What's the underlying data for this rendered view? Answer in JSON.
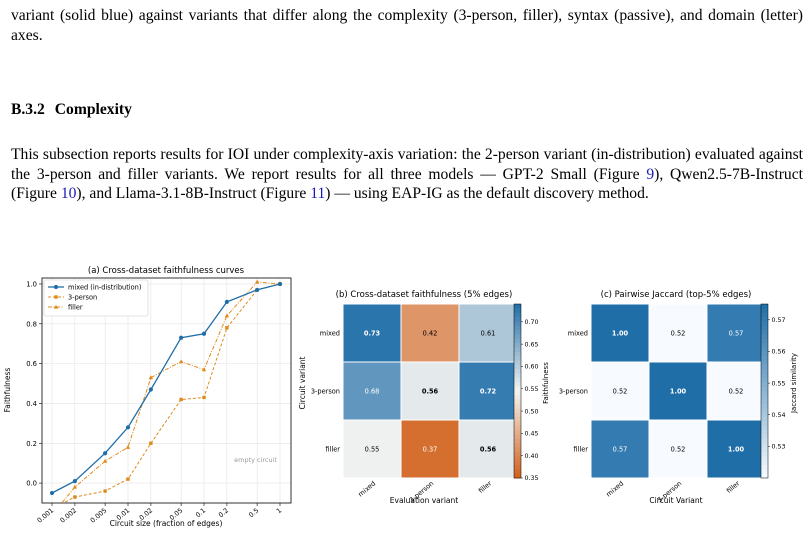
{
  "paragraph1": "variant (solid blue) against variants that differ along the complexity (3-person, filler), syntax (passive), and domain (letter) axes.",
  "section": {
    "number": "B.3.2",
    "title": "Complexity"
  },
  "paragraph2": {
    "before": "This subsection reports results for IOI under complexity-axis variation: the 2-person variant (in-distribution) evaluated against the 3-person and filler variants. We report results for all three models — GPT-2 Small (Figure ",
    "ref1": "9",
    "mid1": "), Qwen2.5-7B-Instruct (Figure ",
    "ref2": "10",
    "mid2": "), and Llama-3.1-8B-Instruct (Figure ",
    "ref3": "11",
    "after": ") — using EAP-IG as the default discovery method."
  },
  "colors": {
    "mixed": "#1f6ea8",
    "other": "#e08a1a",
    "heat_high": "#1f6ea8",
    "heat_low": "#d2601a"
  },
  "chart_data": [
    {
      "type": "line",
      "title": "(a) Cross-dataset faithfulness curves",
      "xlabel": "Circuit size (fraction of edges)",
      "ylabel": "Faithfulness",
      "x": [
        "0.001",
        "0.002",
        "0.005",
        "0.01",
        "0.02",
        "0.05",
        "0.1",
        "0.2",
        "0.5",
        "1"
      ],
      "xscale": "log",
      "yticks": [
        "0.0",
        "0.2",
        "0.4",
        "0.6",
        "0.8",
        "1.0"
      ],
      "ylim": [
        -0.1,
        1.03
      ],
      "grid": true,
      "legend": "top-left",
      "annotation": "empty circuit",
      "series": [
        {
          "name": "mixed (in-distribution)",
          "style": "solid",
          "values": [
            -0.05,
            0.01,
            0.15,
            0.28,
            0.47,
            0.73,
            0.75,
            0.91,
            0.97,
            1.0
          ]
        },
        {
          "name": "3-person",
          "style": "dashed",
          "values": [
            -0.13,
            -0.07,
            -0.04,
            0.02,
            0.2,
            0.42,
            0.43,
            0.78,
            0.97,
            1.0
          ]
        },
        {
          "name": "filler",
          "style": "dashdot",
          "values": [
            -0.16,
            -0.02,
            0.11,
            0.18,
            0.53,
            0.61,
            0.57,
            0.84,
            1.01,
            1.0
          ]
        }
      ]
    },
    {
      "type": "heatmap",
      "title": "(b) Cross-dataset faithfulness (5% edges)",
      "xlabel": "Evaluation variant",
      "ylabel": "Circuit variant",
      "colorbar_label": "Faithfulness",
      "rows": [
        "mixed",
        "3-person",
        "filler"
      ],
      "cols": [
        "mixed",
        "3-person",
        "filler"
      ],
      "values": [
        [
          0.73,
          0.42,
          0.61
        ],
        [
          0.68,
          0.56,
          0.72
        ],
        [
          0.55,
          0.37,
          0.56
        ]
      ],
      "labels": [
        [
          "0.73",
          "0.42",
          "0.61"
        ],
        [
          "0.68",
          "0.56",
          "0.72"
        ],
        [
          "0.55",
          "0.37",
          "0.56"
        ]
      ],
      "range": [
        0.35,
        0.74
      ],
      "colorbar_ticks": [
        "0.35",
        "0.40",
        "0.45",
        "0.50",
        "0.55",
        "0.60",
        "0.65",
        "0.70"
      ]
    },
    {
      "type": "heatmap",
      "title": "(c) Pairwise Jaccard (top-5% edges)",
      "xlabel": "Circuit Variant",
      "ylabel": "",
      "colorbar_label": "Jaccard similarity",
      "rows": [
        "mixed",
        "3-person",
        "filler"
      ],
      "cols": [
        "mixed",
        "3-person",
        "filler"
      ],
      "values": [
        [
          1.0,
          0.52,
          0.57
        ],
        [
          0.52,
          1.0,
          0.52
        ],
        [
          0.57,
          0.52,
          1.0
        ]
      ],
      "labels": [
        [
          "1.00",
          "0.52",
          "0.57"
        ],
        [
          "0.52",
          "1.00",
          "0.52"
        ],
        [
          "0.57",
          "0.52",
          "1.00"
        ]
      ],
      "range": [
        0.52,
        0.575
      ],
      "colorbar_ticks": [
        "0.53",
        "0.54",
        "0.55",
        "0.56",
        "0.57"
      ]
    }
  ]
}
